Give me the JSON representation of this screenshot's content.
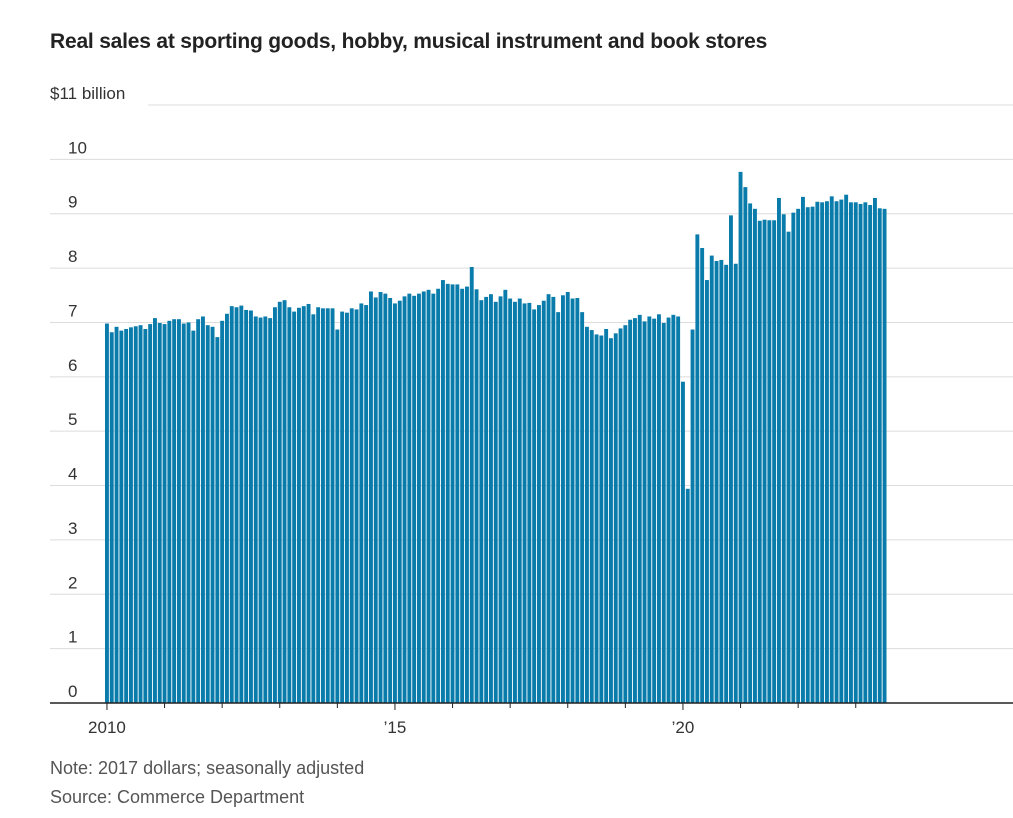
{
  "title": "Real sales at sporting goods, hobby, musical instrument and book stores",
  "note": "Note: 2017 dollars; seasonally adjusted",
  "source": "Source: Commerce Department",
  "chart_data": {
    "type": "bar",
    "title": "Real sales at sporting goods, hobby, musical instrument and book stores",
    "unit_label": "$11 billion",
    "ylim": [
      0,
      11
    ],
    "yticks": [
      0,
      1,
      2,
      3,
      4,
      5,
      6,
      7,
      8,
      9,
      10
    ],
    "ytick_labels": [
      "0",
      "1",
      "2",
      "3",
      "4",
      "5",
      "6",
      "7",
      "8",
      "9",
      "10"
    ],
    "xticks": [
      {
        "label": "2010",
        "date": "2010-01"
      },
      {
        "label": "’15",
        "date": "2015-01"
      },
      {
        "label": "’20",
        "date": "2020-01"
      }
    ],
    "grid": true,
    "bar_color": "#0a7cab",
    "x_start": "2010-01",
    "x_end": "2023-08",
    "frequency": "monthly",
    "values": [
      6.98,
      6.82,
      6.92,
      6.85,
      6.88,
      6.91,
      6.93,
      6.95,
      6.88,
      6.97,
      7.08,
      6.99,
      6.97,
      7.03,
      7.06,
      7.06,
      6.98,
      7.0,
      6.85,
      7.06,
      7.11,
      6.95,
      6.92,
      6.73,
      7.03,
      7.16,
      7.3,
      7.28,
      7.31,
      7.23,
      7.22,
      7.11,
      7.09,
      7.11,
      7.08,
      7.28,
      7.38,
      7.41,
      7.28,
      7.2,
      7.27,
      7.3,
      7.34,
      7.15,
      7.28,
      7.26,
      7.26,
      7.26,
      6.87,
      7.2,
      7.18,
      7.26,
      7.24,
      7.35,
      7.32,
      7.57,
      7.46,
      7.56,
      7.53,
      7.45,
      7.35,
      7.4,
      7.48,
      7.53,
      7.49,
      7.53,
      7.57,
      7.6,
      7.53,
      7.62,
      7.78,
      7.71,
      7.7,
      7.7,
      7.62,
      7.66,
      8.02,
      7.61,
      7.41,
      7.47,
      7.52,
      7.38,
      7.48,
      7.6,
      7.44,
      7.38,
      7.44,
      7.35,
      7.36,
      7.24,
      7.32,
      7.4,
      7.52,
      7.47,
      7.19,
      7.5,
      7.56,
      7.44,
      7.45,
      7.19,
      6.92,
      6.86,
      6.78,
      6.76,
      6.88,
      6.71,
      6.8,
      6.89,
      6.95,
      7.05,
      7.08,
      7.14,
      7.02,
      7.11,
      7.07,
      7.15,
      6.99,
      7.09,
      7.14,
      7.11,
      5.91,
      3.94,
      6.87,
      8.62,
      8.37,
      7.78,
      8.23,
      8.13,
      8.15,
      8.06,
      8.97,
      8.08,
      9.77,
      9.49,
      9.19,
      9.09,
      8.87,
      8.89,
      8.88,
      8.88,
      9.29,
      8.99,
      8.67,
      9.02,
      9.09,
      9.31,
      9.12,
      9.13,
      9.22,
      9.21,
      9.23,
      9.32,
      9.23,
      9.26,
      9.35,
      9.21,
      9.21,
      9.18,
      9.21,
      9.16,
      9.29,
      9.1,
      9.09
    ]
  }
}
